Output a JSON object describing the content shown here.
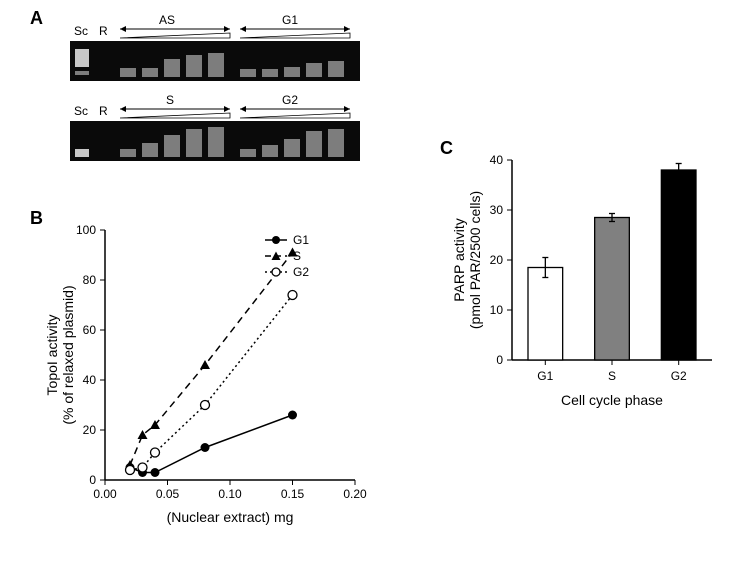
{
  "panels": {
    "a": {
      "label": "A"
    },
    "b": {
      "label": "B"
    },
    "c": {
      "label": "C"
    }
  },
  "gels": {
    "lane_labels": [
      "Sc",
      "R"
    ],
    "top": {
      "left_group": "AS",
      "right_group": "G1"
    },
    "bottom": {
      "left_group": "S",
      "right_group": "G2"
    },
    "background": "#0a0a0a",
    "band_dim": "#6a6a6a",
    "band_bright": "#d0d0d0"
  },
  "chartB": {
    "type": "line",
    "title": "",
    "xlabel": "(Nuclear extract) mg",
    "ylabel": "TopoI activity\n(% of relaxed plasmid)",
    "xlim": [
      0.0,
      0.2
    ],
    "ylim": [
      0,
      100
    ],
    "xticks": [
      0.0,
      0.05,
      0.1,
      0.15,
      0.2
    ],
    "yticks": [
      0,
      20,
      40,
      60,
      80,
      100
    ],
    "xtick_labels": [
      "0.00",
      "0.05",
      "0.10",
      "0.15",
      "0.20"
    ],
    "ytick_labels": [
      "0",
      "20",
      "40",
      "60",
      "80",
      "100"
    ],
    "axis_color": "#000000",
    "background": "#ffffff",
    "label_fontsize": 14,
    "tick_fontsize": 12,
    "legend": {
      "items": [
        {
          "label": "G1",
          "marker": "filled-circle",
          "line": "solid",
          "color": "#000000"
        },
        {
          "label": "S",
          "marker": "filled-triangle",
          "line": "dashed",
          "color": "#000000"
        },
        {
          "label": "G2",
          "marker": "open-circle",
          "line": "dotted",
          "color": "#000000"
        }
      ]
    },
    "series": {
      "G1": {
        "x": [
          0.02,
          0.03,
          0.04,
          0.08,
          0.15
        ],
        "y": [
          5,
          3,
          3,
          13,
          26
        ],
        "color": "#000000",
        "marker": "filled-circle",
        "dash": "solid",
        "marker_size": 4.5,
        "line_width": 1.5
      },
      "S": {
        "x": [
          0.02,
          0.03,
          0.04,
          0.08,
          0.15
        ],
        "y": [
          6,
          18,
          22,
          46,
          91
        ],
        "color": "#000000",
        "marker": "filled-triangle",
        "dash": "dashed",
        "marker_size": 5,
        "line_width": 1.5
      },
      "G2": {
        "x": [
          0.02,
          0.03,
          0.04,
          0.08,
          0.15
        ],
        "y": [
          4,
          5,
          11,
          30,
          74
        ],
        "color": "#000000",
        "marker": "open-circle",
        "dash": "dotted",
        "marker_size": 4.5,
        "line_width": 1.5
      }
    }
  },
  "chartC": {
    "type": "bar",
    "title": "",
    "xlabel": "Cell cycle phase",
    "ylabel": "PARP activity\n(pmol PAR/2500 cells)",
    "categories": [
      "G1",
      "S",
      "G2"
    ],
    "values": [
      18.5,
      28.5,
      38
    ],
    "errors": [
      2.0,
      0.8,
      1.3
    ],
    "bar_colors": [
      "#ffffff",
      "#808080",
      "#000000"
    ],
    "bar_border": "#000000",
    "ylim": [
      0,
      40
    ],
    "yticks": [
      0,
      10,
      20,
      30,
      40
    ],
    "ytick_labels": [
      "0",
      "10",
      "20",
      "30",
      "40"
    ],
    "bar_width": 0.52,
    "axis_color": "#000000",
    "background": "#ffffff",
    "label_fontsize": 14,
    "tick_fontsize": 12,
    "errorbar_color": "#000000",
    "errorbar_cap": 6
  }
}
